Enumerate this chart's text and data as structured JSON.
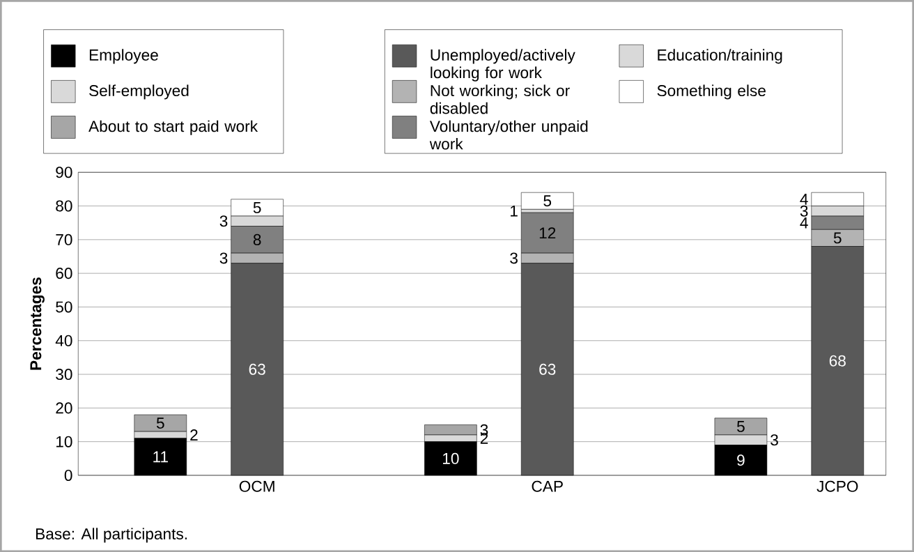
{
  "chart_data": {
    "type": "bar",
    "stacked": true,
    "ylabel": "Percentages",
    "categories": [
      null,
      "OCM",
      null,
      null,
      "CAP",
      null,
      null,
      "JCPO"
    ],
    "series": [
      {
        "name": "Employee",
        "color": "#000000",
        "values": [
          11,
          null,
          null,
          10,
          null,
          null,
          9,
          null
        ]
      },
      {
        "name": "Self-employed",
        "color": "#d9d9d9",
        "values": [
          2,
          null,
          null,
          2,
          null,
          null,
          3,
          null
        ]
      },
      {
        "name": "About to start paid work",
        "color": "#a6a6a6",
        "values": [
          5,
          null,
          null,
          3,
          null,
          null,
          5,
          null
        ]
      },
      {
        "name": "Unemployed/actively looking for work",
        "color": "#595959",
        "values": [
          null,
          63,
          null,
          null,
          63,
          null,
          null,
          68
        ]
      },
      {
        "name": "Not working; sick or disabled",
        "color": "#b3b3b3",
        "values": [
          null,
          3,
          null,
          null,
          3,
          null,
          null,
          5
        ]
      },
      {
        "name": "Voluntary/other unpaid work",
        "color": "#808080",
        "values": [
          null,
          8,
          null,
          null,
          12,
          null,
          null,
          4
        ]
      },
      {
        "name": "Education/training",
        "color": "#d9d9d9",
        "values": [
          null,
          3,
          null,
          null,
          1,
          null,
          null,
          3
        ]
      },
      {
        "name": "Something else",
        "color": "#ffffff",
        "values": [
          null,
          5,
          null,
          null,
          5,
          null,
          null,
          4
        ]
      }
    ],
    "ylim": [
      0,
      90
    ],
    "yticks": [
      0,
      10,
      20,
      30,
      40,
      50,
      60,
      70,
      80,
      90
    ],
    "grid": "y",
    "legend": "top",
    "data_labels": true,
    "annotations": [
      "Base: All participants."
    ]
  }
}
